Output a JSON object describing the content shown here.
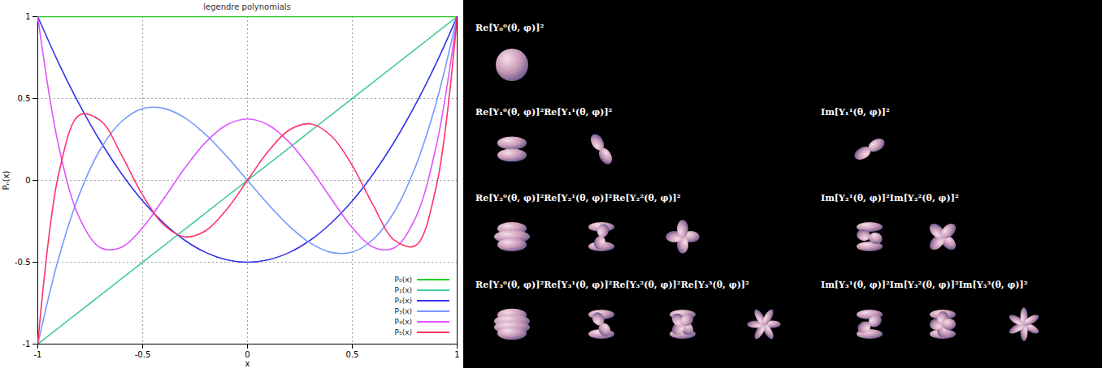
{
  "chart_data": {
    "type": "line",
    "title": "legendre polynomials",
    "x_label": "x",
    "y_label": "Pₙ(x)",
    "x": [
      -1,
      -0.9,
      -0.8,
      -0.7,
      -0.6,
      -0.5,
      -0.4,
      -0.3,
      -0.2,
      -0.1,
      0,
      0.1,
      0.2,
      0.3,
      0.4,
      0.5,
      0.6,
      0.7,
      0.8,
      0.9,
      1
    ],
    "xlim": [
      -1,
      1
    ],
    "ylim": [
      -1,
      1
    ],
    "xticks": [
      -1,
      -0.5,
      0,
      0.5,
      1
    ],
    "yticks": [
      -1,
      -0.5,
      0,
      0.5,
      1
    ],
    "grid": true,
    "legend": "bottom-right",
    "series": [
      {
        "name": "P₀(x)",
        "color": "#22cc22",
        "values": [
          1,
          1,
          1,
          1,
          1,
          1,
          1,
          1,
          1,
          1,
          1,
          1,
          1,
          1,
          1,
          1,
          1,
          1,
          1,
          1,
          1
        ]
      },
      {
        "name": "P₁(x)",
        "color": "#44cc99",
        "values": [
          -1,
          -0.9,
          -0.8,
          -0.7,
          -0.6,
          -0.5,
          -0.4,
          -0.3,
          -0.2,
          -0.1,
          0,
          0.1,
          0.2,
          0.3,
          0.4,
          0.5,
          0.6,
          0.7,
          0.8,
          0.9,
          1
        ]
      },
      {
        "name": "P₂(x)",
        "color": "#3333ee",
        "values": [
          1,
          0.715,
          0.46,
          0.235,
          0.04,
          -0.125,
          -0.26,
          -0.365,
          -0.44,
          -0.485,
          -0.5,
          -0.485,
          -0.44,
          -0.365,
          -0.26,
          -0.125,
          0.04,
          0.235,
          0.46,
          0.715,
          1
        ]
      },
      {
        "name": "P₃(x)",
        "color": "#7799ff",
        "values": [
          -1,
          -0.473,
          -0.08,
          0.193,
          0.36,
          0.438,
          0.44,
          0.383,
          0.28,
          0.148,
          0,
          -0.148,
          -0.28,
          -0.383,
          -0.44,
          -0.438,
          -0.36,
          -0.193,
          0.08,
          0.473,
          1
        ]
      },
      {
        "name": "P₄(x)",
        "color": "#dd55ff",
        "values": [
          1,
          0.208,
          -0.233,
          -0.412,
          -0.408,
          -0.289,
          -0.113,
          0.073,
          0.232,
          0.338,
          0.375,
          0.338,
          0.232,
          0.073,
          -0.113,
          -0.289,
          -0.408,
          -0.412,
          -0.233,
          0.208,
          1
        ]
      },
      {
        "name": "P₅(x)",
        "color": "#ff3366",
        "values": [
          -1,
          0.041,
          0.4,
          0.365,
          0.153,
          -0.09,
          -0.271,
          -0.345,
          -0.308,
          -0.179,
          0,
          0.179,
          0.308,
          0.345,
          0.271,
          0.09,
          -0.153,
          -0.365,
          -0.4,
          -0.041,
          1
        ]
      }
    ]
  },
  "spherical_harmonics": {
    "rows": [
      {
        "re": [
          "Re[Y₀⁰(θ, φ)]²"
        ]
      },
      {
        "re": [
          "Re[Y₁⁰(θ, φ)]²",
          "Re[Y₁¹(θ, φ)]²"
        ],
        "im": [
          "Im[Y₁¹(θ, φ)]²"
        ]
      },
      {
        "re": [
          "Re[Y₂⁰(θ, φ)]²",
          "Re[Y₂¹(θ, φ)]²",
          "Re[Y₂²(θ, φ)]²"
        ],
        "im": [
          "Im[Y₂¹(θ, φ)]²",
          "Im[Y₂²(θ, φ)]²"
        ]
      },
      {
        "re": [
          "Re[Y₃⁰(θ, φ)]²",
          "Re[Y₃¹(θ, φ)]²",
          "Re[Y₃²(θ, φ)]²",
          "Re[Y₃³(θ, φ)]²"
        ],
        "im": [
          "Im[Y₃¹(θ, φ)]²",
          "Im[Y₃²(θ, φ)]²",
          "Im[Y₃³(θ, φ)]²"
        ]
      }
    ]
  }
}
